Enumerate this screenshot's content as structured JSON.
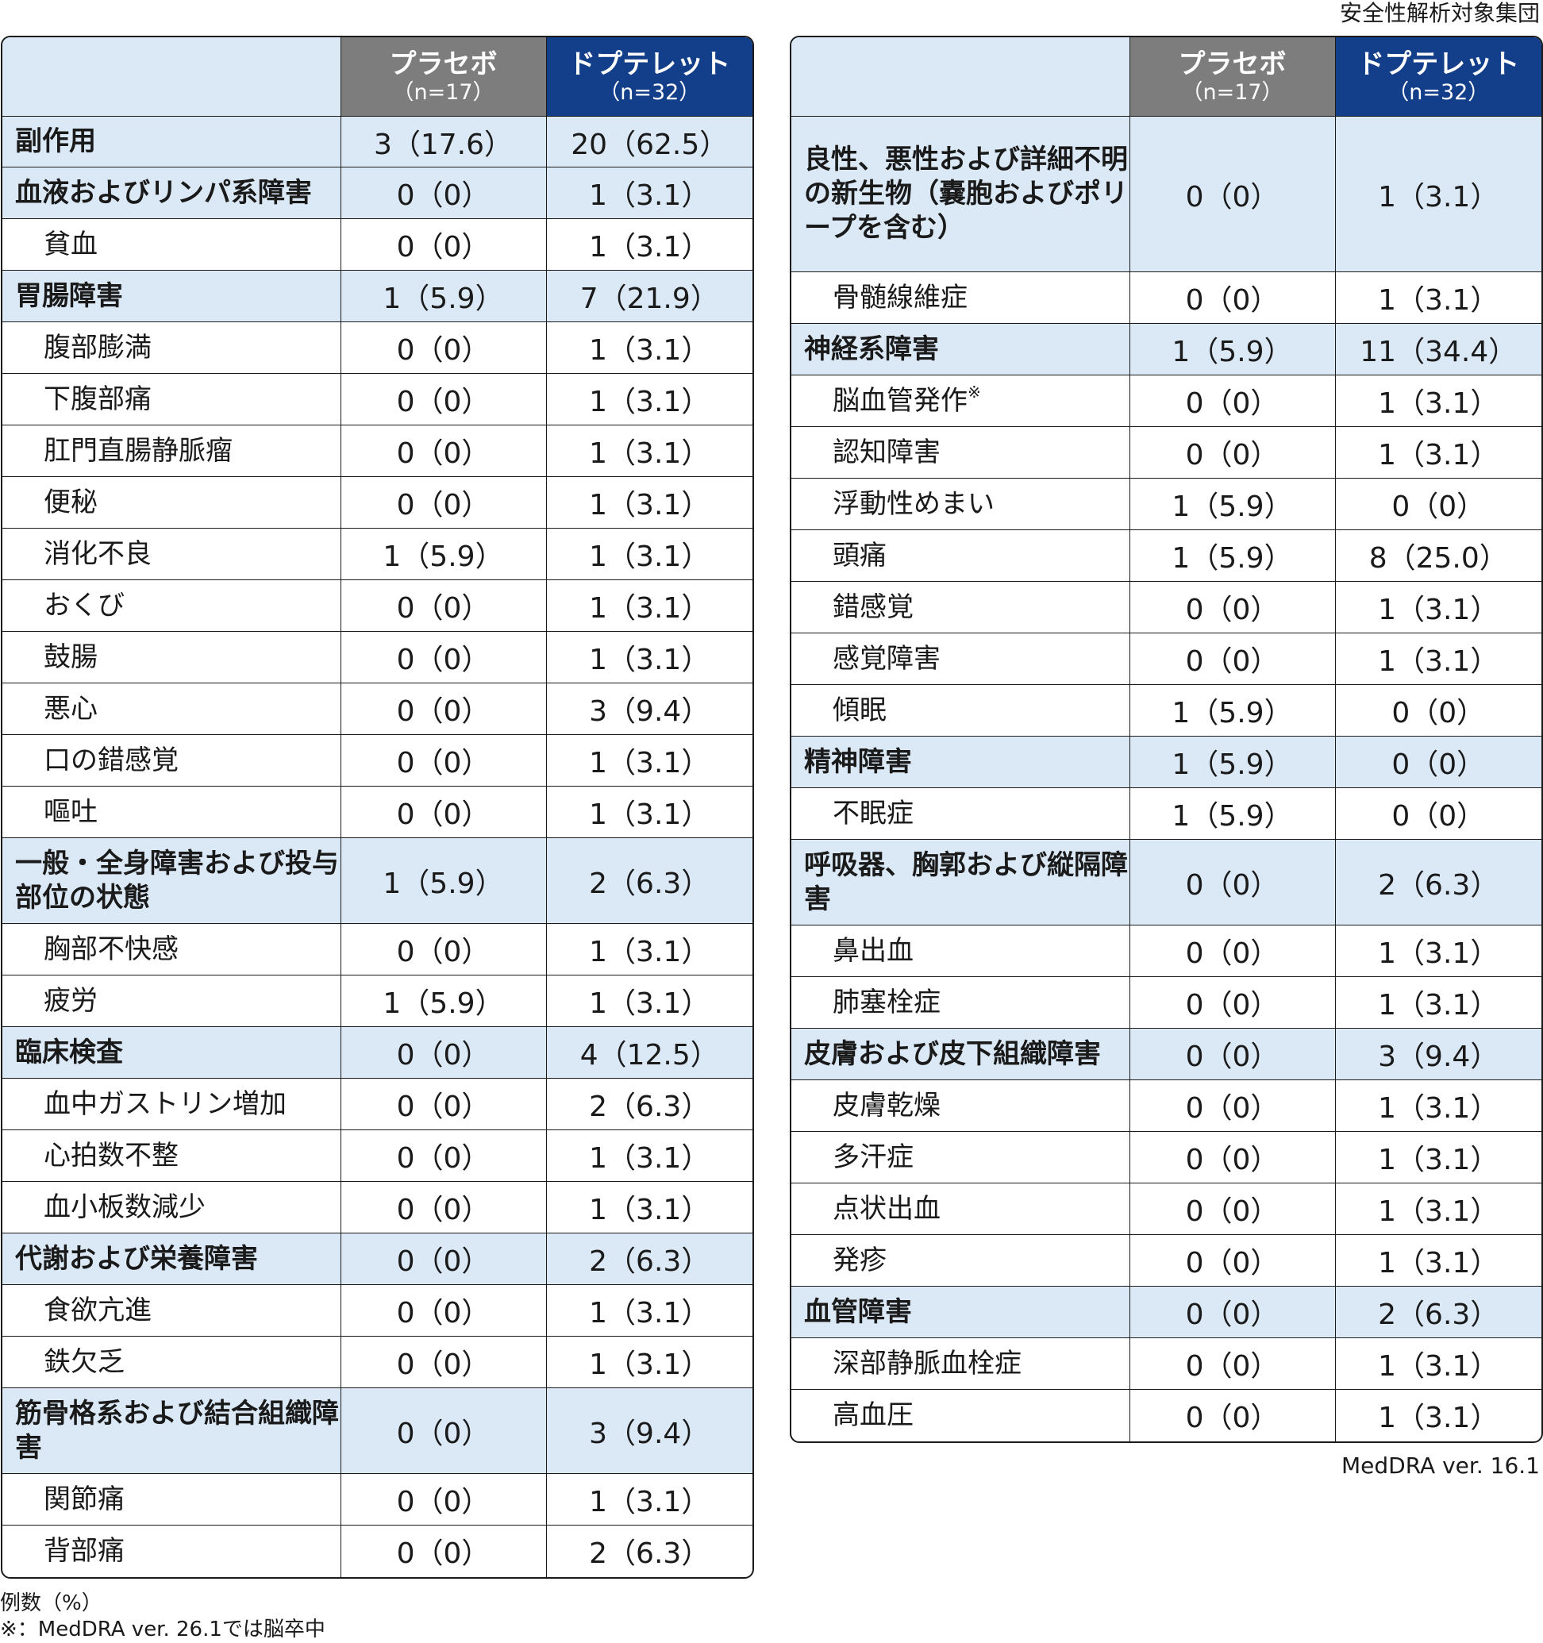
{
  "caption": "安全性解析対象集団",
  "header": {
    "placebo_name": "プラセボ",
    "placebo_n": "（n=17）",
    "drug_name": "ドプテレット",
    "drug_n": "（n=32）"
  },
  "left_rows": [
    {
      "label": "副作用",
      "type": "cat",
      "placebo": "3（17.6）",
      "drug": "20（62.5）",
      "h": 64
    },
    {
      "label": "血液およびリンパ系障害",
      "type": "cat",
      "placebo": "0（0）",
      "drug": "1（3.1）",
      "h": 65
    },
    {
      "label": "貧血",
      "type": "sub",
      "placebo": "0（0）",
      "drug": "1（3.1）",
      "h": 65
    },
    {
      "label": "胃腸障害",
      "type": "cat",
      "placebo": "1（5.9）",
      "drug": "7（21.9）",
      "h": 65
    },
    {
      "label": "腹部膨満",
      "type": "sub",
      "placebo": "0（0）",
      "drug": "1（3.1）",
      "h": 65
    },
    {
      "label": "下腹部痛",
      "type": "sub",
      "placebo": "0（0）",
      "drug": "1（3.1）",
      "h": 65
    },
    {
      "label": "肛門直腸静脈瘤",
      "type": "sub",
      "placebo": "0（0）",
      "drug": "1（3.1）",
      "h": 65
    },
    {
      "label": "便秘",
      "type": "sub",
      "placebo": "0（0）",
      "drug": "1（3.1）",
      "h": 65
    },
    {
      "label": "消化不良",
      "type": "sub",
      "placebo": "1（5.9）",
      "drug": "1（3.1）",
      "h": 65
    },
    {
      "label": "おくび",
      "type": "sub",
      "placebo": "0（0）",
      "drug": "1（3.1）",
      "h": 65
    },
    {
      "label": "鼓腸",
      "type": "sub",
      "placebo": "0（0）",
      "drug": "1（3.1）",
      "h": 65
    },
    {
      "label": "悪心",
      "type": "sub",
      "placebo": "0（0）",
      "drug": "3（9.4）",
      "h": 65
    },
    {
      "label": "口の錯感覚",
      "type": "sub",
      "placebo": "0（0）",
      "drug": "1（3.1）",
      "h": 65
    },
    {
      "label": "嘔吐",
      "type": "sub",
      "placebo": "0（0）",
      "drug": "1（3.1）",
      "h": 65
    },
    {
      "label": "一般・全身障害および投与部位の状態",
      "type": "cat",
      "placebo": "1（5.9）",
      "drug": "2（6.3）",
      "h": 108
    },
    {
      "label": "胸部不快感",
      "type": "sub",
      "placebo": "0（0）",
      "drug": "1（3.1）",
      "h": 65
    },
    {
      "label": "疲労",
      "type": "sub",
      "placebo": "1（5.9）",
      "drug": "1（3.1）",
      "h": 65
    },
    {
      "label": "臨床検査",
      "type": "cat",
      "placebo": "0（0）",
      "drug": "4（12.5）",
      "h": 65
    },
    {
      "label": "血中ガストリン増加",
      "type": "sub",
      "placebo": "0（0）",
      "drug": "2（6.3）",
      "h": 65
    },
    {
      "label": "心拍数不整",
      "type": "sub",
      "placebo": "0（0）",
      "drug": "1（3.1）",
      "h": 65
    },
    {
      "label": "血小板数減少",
      "type": "sub",
      "placebo": "0（0）",
      "drug": "1（3.1）",
      "h": 65
    },
    {
      "label": "代謝および栄養障害",
      "type": "cat",
      "placebo": "0（0）",
      "drug": "2（6.3）",
      "h": 65
    },
    {
      "label": "食欲亢進",
      "type": "sub",
      "placebo": "0（0）",
      "drug": "1（3.1）",
      "h": 65
    },
    {
      "label": "鉄欠乏",
      "type": "sub",
      "placebo": "0（0）",
      "drug": "1（3.1）",
      "h": 65
    },
    {
      "label": "筋骨格系および結合組織障害",
      "type": "cat",
      "placebo": "0（0）",
      "drug": "3（9.4）",
      "h": 108
    },
    {
      "label": "関節痛",
      "type": "sub",
      "placebo": "0（0）",
      "drug": "1（3.1）",
      "h": 65
    },
    {
      "label": "背部痛",
      "type": "sub",
      "placebo": "0（0）",
      "drug": "2（6.3）",
      "h": 65
    }
  ],
  "right_rows": [
    {
      "label": "良性、悪性および詳細不明の新生物（嚢胞およびポリープを含む）",
      "type": "cat",
      "placebo": "0（0）",
      "drug": "1（3.1）",
      "h": 196
    },
    {
      "label": "骨髄線維症",
      "type": "sub",
      "placebo": "0（0）",
      "drug": "1（3.1）",
      "h": 65
    },
    {
      "label": "神経系障害",
      "type": "cat",
      "placebo": "1（5.9）",
      "drug": "11（34.4）",
      "h": 65
    },
    {
      "label": "脳血管発作",
      "mark": "※",
      "type": "sub",
      "placebo": "0（0）",
      "drug": "1（3.1）",
      "h": 65
    },
    {
      "label": "認知障害",
      "type": "sub",
      "placebo": "0（0）",
      "drug": "1（3.1）",
      "h": 65
    },
    {
      "label": "浮動性めまい",
      "type": "sub",
      "placebo": "1（5.9）",
      "drug": "0（0）",
      "h": 65
    },
    {
      "label": "頭痛",
      "type": "sub",
      "placebo": "1（5.9）",
      "drug": "8（25.0）",
      "h": 65
    },
    {
      "label": "錯感覚",
      "type": "sub",
      "placebo": "0（0）",
      "drug": "1（3.1）",
      "h": 65
    },
    {
      "label": "感覚障害",
      "type": "sub",
      "placebo": "0（0）",
      "drug": "1（3.1）",
      "h": 65
    },
    {
      "label": "傾眠",
      "type": "sub",
      "placebo": "1（5.9）",
      "drug": "0（0）",
      "h": 65
    },
    {
      "label": "精神障害",
      "type": "cat",
      "placebo": "1（5.9）",
      "drug": "0（0）",
      "h": 65
    },
    {
      "label": "不眠症",
      "type": "sub",
      "placebo": "1（5.9）",
      "drug": "0（0）",
      "h": 65
    },
    {
      "label": "呼吸器、胸郭および縦隔障害",
      "type": "cat",
      "placebo": "0（0）",
      "drug": "2（6.3）",
      "h": 108
    },
    {
      "label": "鼻出血",
      "type": "sub",
      "placebo": "0（0）",
      "drug": "1（3.1）",
      "h": 65
    },
    {
      "label": "肺塞栓症",
      "type": "sub",
      "placebo": "0（0）",
      "drug": "1（3.1）",
      "h": 65
    },
    {
      "label": "皮膚および皮下組織障害",
      "type": "cat",
      "placebo": "0（0）",
      "drug": "3（9.4）",
      "h": 65
    },
    {
      "label": "皮膚乾燥",
      "type": "sub",
      "placebo": "0（0）",
      "drug": "1（3.1）",
      "h": 65
    },
    {
      "label": "多汗症",
      "type": "sub",
      "placebo": "0（0）",
      "drug": "1（3.1）",
      "h": 65
    },
    {
      "label": "点状出血",
      "type": "sub",
      "placebo": "0（0）",
      "drug": "1（3.1）",
      "h": 65
    },
    {
      "label": "発疹",
      "type": "sub",
      "placebo": "0（0）",
      "drug": "1（3.1）",
      "h": 65
    },
    {
      "label": "血管障害",
      "type": "cat",
      "placebo": "0（0）",
      "drug": "2（6.3）",
      "h": 65
    },
    {
      "label": "深部静脈血栓症",
      "type": "sub",
      "placebo": "0（0）",
      "drug": "1（3.1）",
      "h": 65
    },
    {
      "label": "高血圧",
      "type": "sub",
      "placebo": "0（0）",
      "drug": "1（3.1）",
      "h": 65
    }
  ],
  "version": "MedDRA ver. 16.1",
  "footnotes": {
    "unit_note": "例数（%）",
    "mark_note": "※：MedDRA ver. 26.1では脳卒中"
  },
  "colors": {
    "category_bg": "#dbe9f6",
    "placebo_header": "#7d7d7d",
    "drug_header": "#123e8a"
  }
}
